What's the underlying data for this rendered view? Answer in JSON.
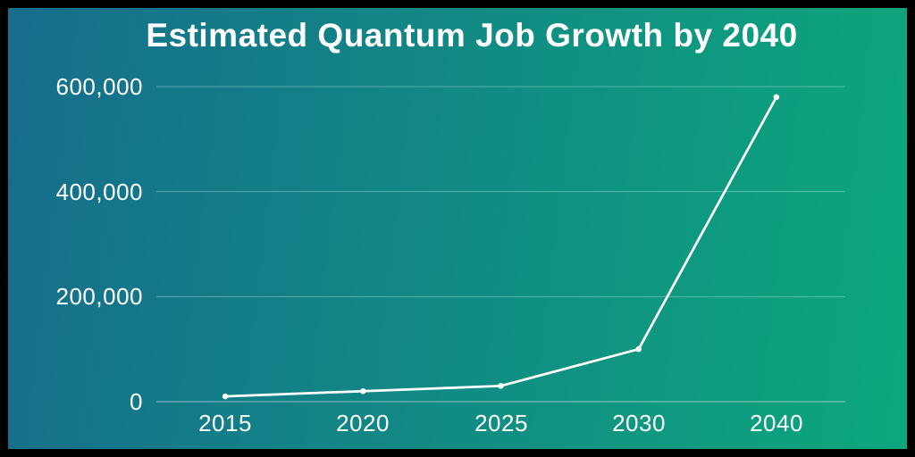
{
  "colors": {
    "frame_border": "#000000",
    "bg_gradient_left": "#166d8c",
    "bg_gradient_right": "#0ca87c",
    "text": "#ffffff",
    "line": "#ffffff",
    "marker": "#ffffff",
    "gridline": "rgba(255,255,255,0.32)",
    "axis_line": "rgba(255,255,255,0.42)"
  },
  "chart_data": {
    "type": "line",
    "title": "Estimated Quantum Job Growth by 2040",
    "categories": [
      "2015",
      "2020",
      "2025",
      "2030",
      "2040"
    ],
    "values": [
      10000,
      20000,
      30000,
      100000,
      580000
    ],
    "xlabel": "",
    "ylabel": "",
    "ylim": [
      0,
      600000
    ],
    "yticks": [
      {
        "value": 600000,
        "label": "600,000"
      },
      {
        "value": 400000,
        "label": "400,000"
      },
      {
        "value": 200000,
        "label": "200,000"
      },
      {
        "value": 0,
        "label": "0"
      }
    ],
    "grid": true,
    "legend": false,
    "marker": "circle"
  }
}
